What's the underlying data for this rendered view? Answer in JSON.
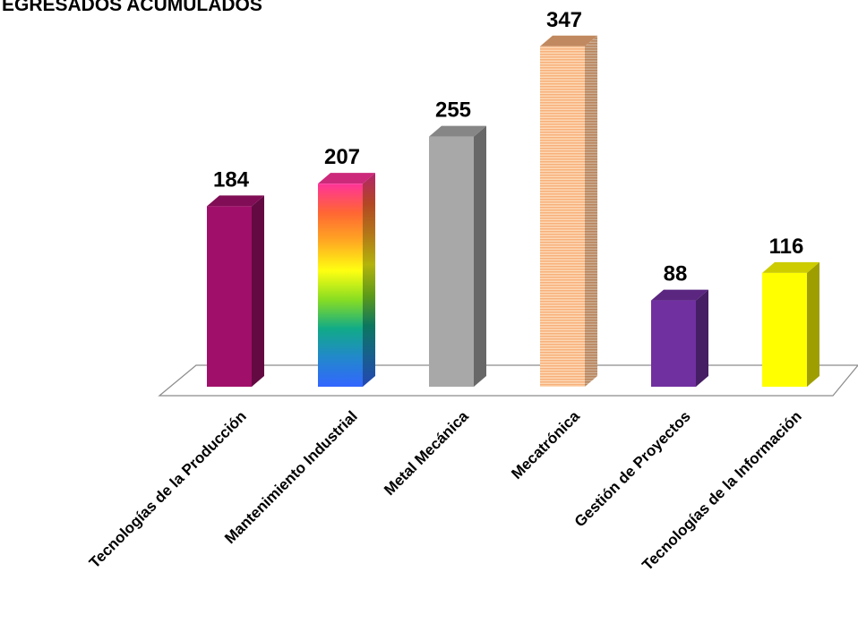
{
  "chart_data": {
    "type": "bar",
    "title": "EGRESADOS ACUMULADOS",
    "xlabel": "",
    "ylabel": "",
    "categories": [
      "Tecnologías de la Producción",
      "Mantenimiento Industrial",
      "Metal Mecánica",
      "Mecatrónica",
      "Gestión de Proyectos",
      "Tecnologías de la Información"
    ],
    "values": [
      184,
      207,
      255,
      347,
      88,
      116
    ],
    "data_labels": [
      "184",
      "207",
      "255",
      "347",
      "88",
      "116"
    ],
    "ylim": [
      0,
      350
    ],
    "grid": false,
    "legend": "none",
    "style": "3d-columns",
    "bar_fills": [
      {
        "kind": "solid",
        "color": "#A0106A"
      },
      {
        "kind": "rainbow-gradient",
        "colors": [
          "#FF3399",
          "#FF6633",
          "#FFAA22",
          "#FFFF11",
          "#88DD22",
          "#11AA88",
          "#2288CC",
          "#3366FF"
        ]
      },
      {
        "kind": "solid",
        "color": "#A8A8A8"
      },
      {
        "kind": "horizontal-stripes",
        "colors": [
          "#F8B07A",
          "#FCD8B6"
        ]
      },
      {
        "kind": "solid",
        "color": "#7030A0"
      },
      {
        "kind": "solid",
        "color": "#FFFF00"
      }
    ]
  }
}
